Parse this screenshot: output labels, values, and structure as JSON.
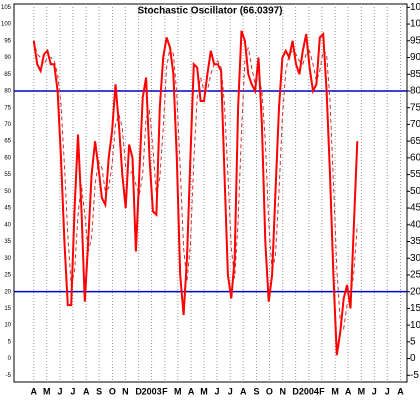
{
  "chart_data": {
    "type": "line",
    "title": "Stochastic Oscillator (66.0397)",
    "series": [
      {
        "color": "#ff0000",
        "style": "solid",
        "values": [
          95,
          88,
          86,
          91,
          92,
          88,
          88,
          80,
          60,
          35,
          16,
          16,
          45,
          67,
          45,
          17,
          35,
          55,
          65,
          57,
          48,
          46,
          60,
          68,
          82,
          70,
          55,
          45,
          64,
          60,
          32,
          55,
          78,
          84,
          60,
          44,
          43,
          75,
          90,
          96,
          93,
          85,
          60,
          25,
          13,
          30,
          60,
          88,
          87,
          77,
          77,
          85,
          92,
          88,
          88,
          86,
          55,
          25,
          18,
          30,
          75,
          98,
          95,
          85,
          82,
          80,
          90,
          70,
          35,
          17,
          25,
          50,
          75,
          90,
          92,
          90,
          95,
          88,
          85,
          92,
          97,
          87,
          80,
          82,
          96,
          97,
          80,
          55,
          25,
          1,
          8,
          18,
          22,
          15,
          40,
          65
        ]
      },
      {
        "color": "#cc3333",
        "style": "dashed",
        "values": [
          95,
          91,
          90,
          88,
          90,
          90,
          89,
          85,
          76,
          58,
          37,
          22,
          26,
          43,
          52,
          43,
          32,
          36,
          52,
          59,
          57,
          50,
          51,
          58,
          70,
          73,
          69,
          57,
          55,
          56,
          52,
          49,
          55,
          72,
          74,
          63,
          49,
          54,
          69,
          87,
          93,
          91,
          79,
          57,
          33,
          23,
          34,
          59,
          78,
          84,
          80,
          80,
          85,
          88,
          89,
          87,
          76,
          55,
          33,
          24,
          41,
          68,
          89,
          93,
          87,
          82,
          84,
          80,
          65,
          41,
          26,
          31,
          50,
          72,
          86,
          91,
          92,
          91,
          89,
          88,
          91,
          92,
          88,
          83,
          86,
          92,
          91,
          77,
          53,
          27,
          11,
          9,
          16,
          18,
          26,
          40
        ]
      }
    ],
    "levels": [
      20,
      80
    ],
    "level_color": "#0000cc",
    "ylim": [
      -7,
      106
    ],
    "yticks": [
      -5,
      0,
      5,
      10,
      15,
      20,
      25,
      30,
      35,
      40,
      45,
      50,
      55,
      60,
      65,
      70,
      75,
      80,
      85,
      90,
      95,
      100,
      105
    ],
    "xlim": [
      -5.8,
      109.6
    ],
    "xticks": [
      {
        "value": 0,
        "label": "A"
      },
      {
        "value": 3.8,
        "label": "M"
      },
      {
        "value": 7.7,
        "label": "J"
      },
      {
        "value": 11.5,
        "label": "J"
      },
      {
        "value": 15.4,
        "label": "A"
      },
      {
        "value": 19.2,
        "label": "S"
      },
      {
        "value": 23.1,
        "label": "O"
      },
      {
        "value": 26.9,
        "label": "N"
      },
      {
        "value": 30.8,
        "label": "D"
      },
      {
        "value": 34.6,
        "label": "2003"
      },
      {
        "value": 38.5,
        "label": "F"
      },
      {
        "value": 42.3,
        "label": "M"
      },
      {
        "value": 46.2,
        "label": "A"
      },
      {
        "value": 50,
        "label": "M"
      },
      {
        "value": 53.8,
        "label": "J"
      },
      {
        "value": 57.7,
        "label": "J"
      },
      {
        "value": 61.5,
        "label": "A"
      },
      {
        "value": 65.4,
        "label": "S"
      },
      {
        "value": 69.2,
        "label": "O"
      },
      {
        "value": 73.1,
        "label": "N"
      },
      {
        "value": 76.9,
        "label": "D"
      },
      {
        "value": 80.8,
        "label": "2004"
      },
      {
        "value": 84.6,
        "label": "F"
      },
      {
        "value": 88.5,
        "label": "M"
      },
      {
        "value": 92.3,
        "label": "A"
      },
      {
        "value": 96.2,
        "label": "M"
      },
      {
        "value": 100,
        "label": "J"
      },
      {
        "value": 103.8,
        "label": "J"
      },
      {
        "value": 107.7,
        "label": "A"
      }
    ],
    "grid": true
  }
}
